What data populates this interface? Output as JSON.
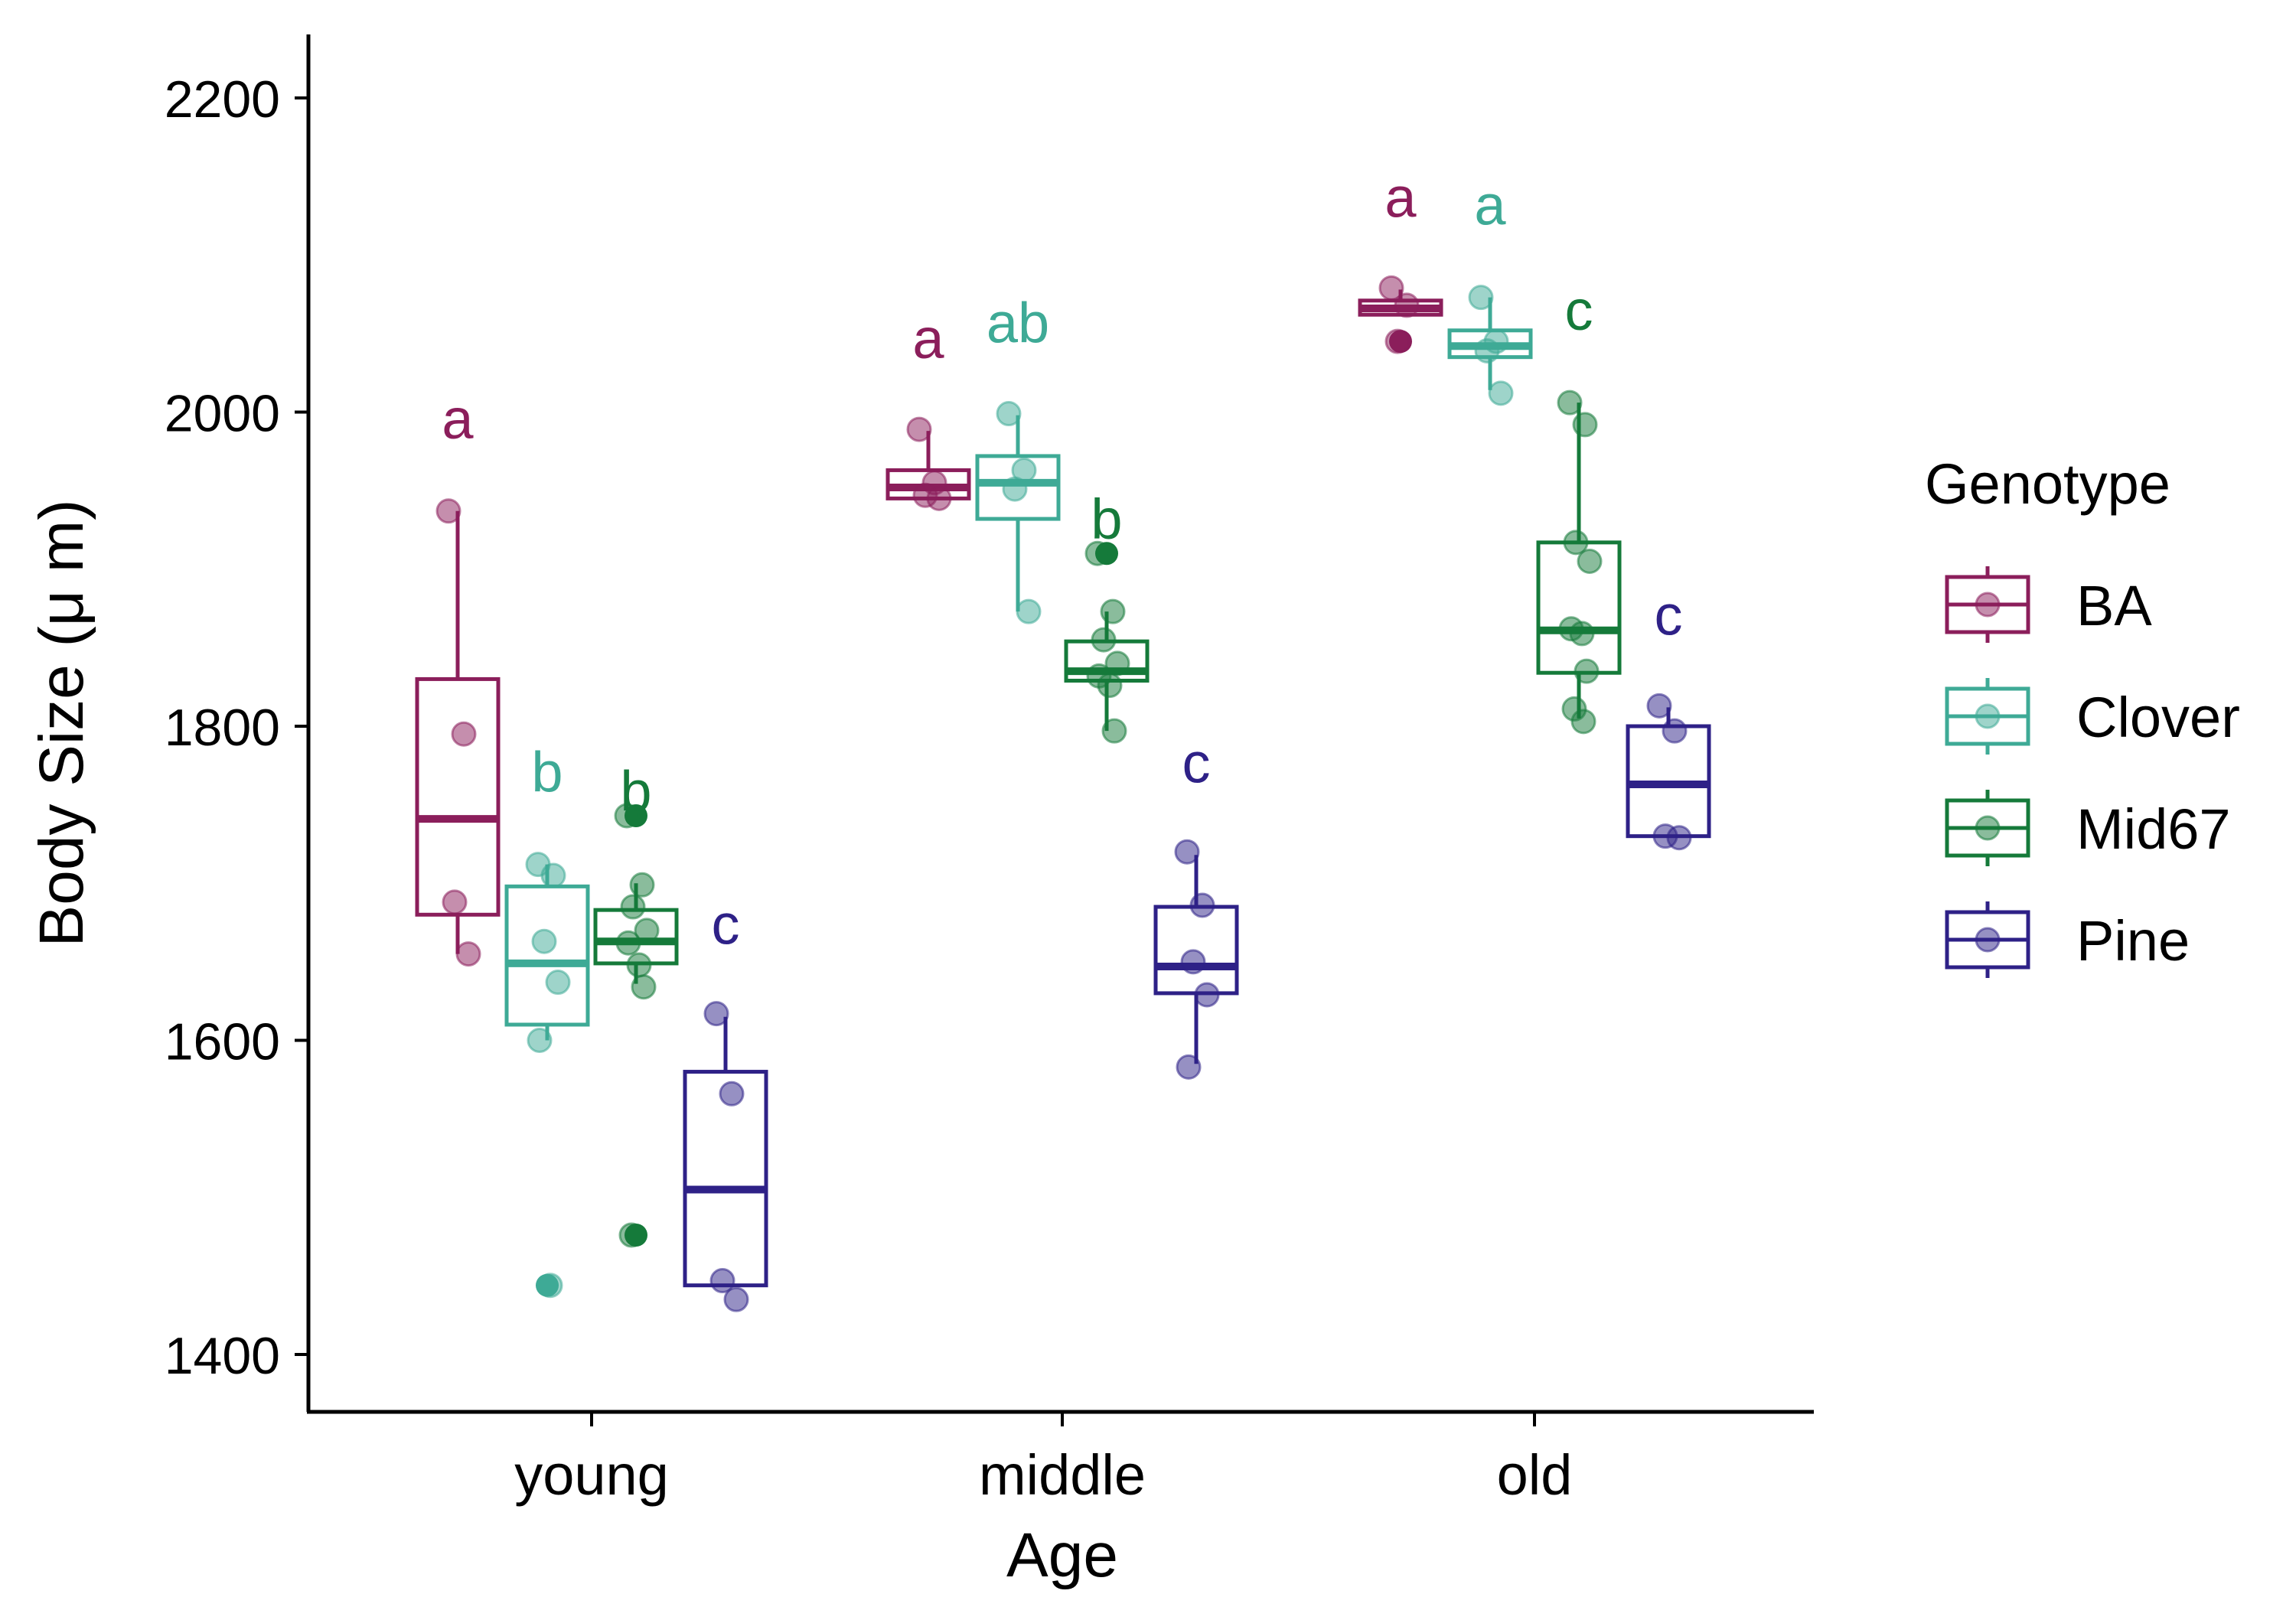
{
  "chart_data": {
    "type": "box",
    "xlabel": "Age",
    "ylabel_prefix": "Body Size (",
    "ylabel_mu": "μ",
    "ylabel_suffix": " m)",
    "ylim": [
      1360,
      2240
    ],
    "yticks": [
      1400,
      1600,
      1800,
      2000,
      2200
    ],
    "categories": [
      "young",
      "middle",
      "old"
    ],
    "grid": false,
    "legend": {
      "title": "Genotype",
      "position": "right",
      "items": [
        "BA",
        "Clover",
        "Mid67",
        "Pine"
      ]
    },
    "colors": {
      "BA": "#8B1E5B",
      "Clover": "#3EAA96",
      "Mid67": "#157A3A",
      "Pine": "#2E2187"
    },
    "series": [
      {
        "name": "BA",
        "boxes": [
          {
            "category": "young",
            "min": 1655,
            "q1": 1680,
            "median": 1741,
            "q3": 1830,
            "max": 1937,
            "letter": "a",
            "points": [
              1937,
              1795,
              1688,
              1655
            ],
            "outliers": []
          },
          {
            "category": "middle",
            "min": 1945,
            "q1": 1945,
            "median": 1952,
            "q3": 1963,
            "max": 1988,
            "letter": "a",
            "points": [
              1989,
              1955,
              1947,
              1945
            ],
            "outliers": []
          },
          {
            "category": "old",
            "min": 2062,
            "q1": 2062,
            "median": 2066,
            "q3": 2071,
            "max": 2078,
            "letter": "a",
            "points": [
              2079,
              2068,
              2045
            ],
            "outliers": [
              2045
            ]
          }
        ]
      },
      {
        "name": "Clover",
        "boxes": [
          {
            "category": "young",
            "min": 1600,
            "q1": 1610,
            "median": 1649,
            "q3": 1698,
            "max": 1712,
            "letter": "b",
            "points": [
              1712,
              1705,
              1663,
              1637,
              1600,
              1444
            ],
            "outliers": [
              1444
            ]
          },
          {
            "category": "middle",
            "min": 1873,
            "q1": 1932,
            "median": 1955,
            "q3": 1972,
            "max": 1998,
            "letter": "ab",
            "points": [
              1999,
              1963,
              1951,
              1873
            ],
            "outliers": []
          },
          {
            "category": "old",
            "min": 2014,
            "q1": 2035,
            "median": 2042,
            "q3": 2052,
            "max": 2073,
            "letter": "a",
            "points": [
              2073,
              2045,
              2039,
              2012
            ],
            "outliers": []
          }
        ]
      },
      {
        "name": "Mid67",
        "boxes": [
          {
            "category": "young",
            "min": 1636,
            "q1": 1649,
            "median": 1663,
            "q3": 1683,
            "max": 1700,
            "letter": "b",
            "points": [
              1743,
              1699,
              1685,
              1670,
              1662,
              1648,
              1634,
              1476
            ],
            "outliers": [
              1743,
              1476
            ]
          },
          {
            "category": "middle",
            "min": 1797,
            "q1": 1829,
            "median": 1835,
            "q3": 1854,
            "max": 1873,
            "letter": "b",
            "points": [
              1910,
              1873,
              1855,
              1840,
              1832,
              1826,
              1797
            ],
            "outliers": [
              1910
            ]
          },
          {
            "category": "old",
            "min": 1805,
            "q1": 1834,
            "median": 1861,
            "q3": 1917,
            "max": 2006,
            "letter": "c",
            "points": [
              2006,
              1992,
              1917,
              1905,
              1862,
              1859,
              1835,
              1811,
              1803
            ],
            "outliers": []
          }
        ]
      },
      {
        "name": "Pine",
        "boxes": [
          {
            "category": "young",
            "min": 1444,
            "q1": 1444,
            "median": 1505,
            "q3": 1580,
            "max": 1615,
            "letter": "c",
            "points": [
              1617,
              1566,
              1447,
              1435
            ],
            "outliers": []
          },
          {
            "category": "middle",
            "min": 1585,
            "q1": 1630,
            "median": 1647,
            "q3": 1685,
            "max": 1718,
            "letter": "c",
            "points": [
              1720,
              1686,
              1650,
              1629,
              1583
            ],
            "outliers": []
          },
          {
            "category": "old",
            "min": 1730,
            "q1": 1730,
            "median": 1763,
            "q3": 1800,
            "max": 1812,
            "letter": "c",
            "points": [
              1813,
              1797,
              1730,
              1729
            ],
            "outliers": []
          }
        ]
      }
    ]
  }
}
